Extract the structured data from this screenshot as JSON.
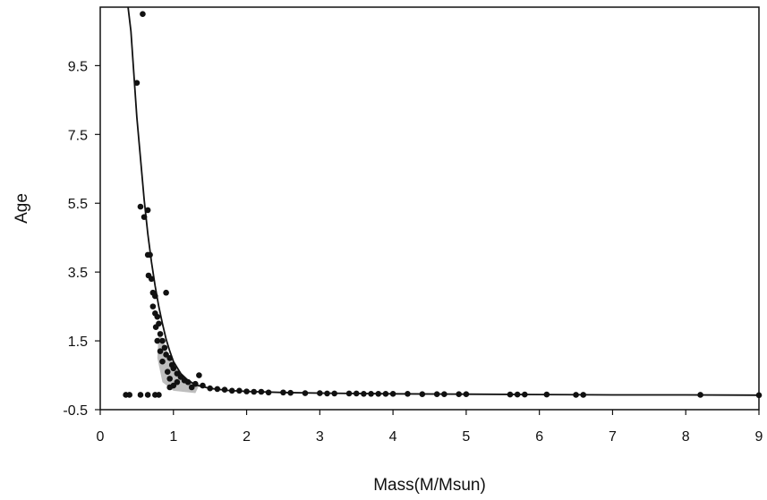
{
  "chart_data": {
    "type": "scatter",
    "title": "",
    "xlabel": "Mass(M/Msun)",
    "ylabel": "Age",
    "xlim": [
      0,
      9
    ],
    "ylim": [
      -0.5,
      11.2
    ],
    "x_ticks": [
      0,
      1,
      2,
      3,
      4,
      5,
      6,
      7,
      8,
      9
    ],
    "x_tick_labels": [
      "0",
      "1",
      "2",
      "3",
      "4",
      "5",
      "6",
      "7",
      "8",
      "9"
    ],
    "y_ticks": [
      -0.5,
      1.5,
      3.5,
      5.5,
      7.5,
      9.5
    ],
    "y_tick_labels": [
      "-0.5",
      "1.5",
      "3.5",
      "5.5",
      "7.5",
      "9.5"
    ],
    "grid": false,
    "legend": "none",
    "colors": {
      "points": "#111111",
      "curve": "#111111",
      "frame": "#111111",
      "dense_fill": "#888888"
    },
    "trend_curve": {
      "type": "line",
      "points": [
        [
          0.38,
          11.2
        ],
        [
          0.42,
          10.5
        ],
        [
          0.5,
          8.0
        ],
        [
          0.55,
          6.8
        ],
        [
          0.6,
          5.6
        ],
        [
          0.65,
          4.6
        ],
        [
          0.7,
          3.8
        ],
        [
          0.75,
          3.1
        ],
        [
          0.8,
          2.5
        ],
        [
          0.85,
          2.0
        ],
        [
          0.9,
          1.55
        ],
        [
          0.95,
          1.2
        ],
        [
          1.0,
          0.9
        ],
        [
          1.1,
          0.55
        ],
        [
          1.2,
          0.35
        ],
        [
          1.3,
          0.22
        ],
        [
          1.5,
          0.12
        ],
        [
          1.75,
          0.06
        ],
        [
          2.0,
          0.03
        ],
        [
          2.5,
          0.0
        ],
        [
          3.0,
          -0.02
        ],
        [
          4.0,
          -0.04
        ],
        [
          5.0,
          -0.05
        ],
        [
          6.0,
          -0.06
        ],
        [
          7.0,
          -0.07
        ],
        [
          8.0,
          -0.07
        ],
        [
          9.0,
          -0.08
        ]
      ]
    },
    "series": [
      {
        "points": [
          [
            0.58,
            11.0
          ],
          [
            0.5,
            9.0
          ],
          [
            0.55,
            5.4
          ],
          [
            0.6,
            5.1
          ],
          [
            0.65,
            5.3
          ],
          [
            0.65,
            4.0
          ],
          [
            0.68,
            4.0
          ],
          [
            0.66,
            3.4
          ],
          [
            0.7,
            3.3
          ],
          [
            0.72,
            2.9
          ],
          [
            0.75,
            2.8
          ],
          [
            0.9,
            2.9
          ],
          [
            0.72,
            2.5
          ],
          [
            0.75,
            2.3
          ],
          [
            0.78,
            2.2
          ],
          [
            0.8,
            2.0
          ],
          [
            0.76,
            1.9
          ],
          [
            0.82,
            1.7
          ],
          [
            0.78,
            1.5
          ],
          [
            0.85,
            1.5
          ],
          [
            0.88,
            1.3
          ],
          [
            0.82,
            1.2
          ],
          [
            0.9,
            1.1
          ],
          [
            0.95,
            1.0
          ],
          [
            0.85,
            0.9
          ],
          [
            0.98,
            0.8
          ],
          [
            1.0,
            0.7
          ],
          [
            0.92,
            0.6
          ],
          [
            1.05,
            0.55
          ],
          [
            1.1,
            0.45
          ],
          [
            0.95,
            0.4
          ],
          [
            1.15,
            0.35
          ],
          [
            1.2,
            0.3
          ],
          [
            1.3,
            0.25
          ],
          [
            1.4,
            0.2
          ],
          [
            1.35,
            0.5
          ],
          [
            1.05,
            0.3
          ],
          [
            1.0,
            0.2
          ],
          [
            0.95,
            0.15
          ],
          [
            1.25,
            0.15
          ],
          [
            1.5,
            0.12
          ],
          [
            1.6,
            0.1
          ],
          [
            1.7,
            0.08
          ],
          [
            1.8,
            0.05
          ],
          [
            1.9,
            0.05
          ],
          [
            2.0,
            0.03
          ],
          [
            2.1,
            0.02
          ],
          [
            2.2,
            0.02
          ],
          [
            2.3,
            0.0
          ],
          [
            2.5,
            0.0
          ],
          [
            2.6,
            -0.01
          ],
          [
            2.8,
            -0.02
          ],
          [
            3.0,
            -0.02
          ],
          [
            3.1,
            -0.03
          ],
          [
            3.2,
            -0.03
          ],
          [
            3.4,
            -0.03
          ],
          [
            3.5,
            -0.03
          ],
          [
            3.6,
            -0.04
          ],
          [
            3.7,
            -0.04
          ],
          [
            3.8,
            -0.04
          ],
          [
            3.9,
            -0.04
          ],
          [
            4.0,
            -0.04
          ],
          [
            4.2,
            -0.04
          ],
          [
            4.4,
            -0.05
          ],
          [
            4.6,
            -0.05
          ],
          [
            4.7,
            -0.05
          ],
          [
            4.9,
            -0.05
          ],
          [
            5.0,
            -0.05
          ],
          [
            5.6,
            -0.06
          ],
          [
            5.7,
            -0.06
          ],
          [
            5.8,
            -0.06
          ],
          [
            6.1,
            -0.06
          ],
          [
            6.5,
            -0.07
          ],
          [
            6.6,
            -0.07
          ],
          [
            8.2,
            -0.07
          ],
          [
            9.0,
            -0.08
          ],
          [
            0.35,
            -0.07
          ],
          [
            0.4,
            -0.07
          ],
          [
            0.55,
            -0.07
          ],
          [
            0.65,
            -0.07
          ],
          [
            0.75,
            -0.07
          ],
          [
            0.8,
            -0.07
          ]
        ]
      }
    ]
  }
}
